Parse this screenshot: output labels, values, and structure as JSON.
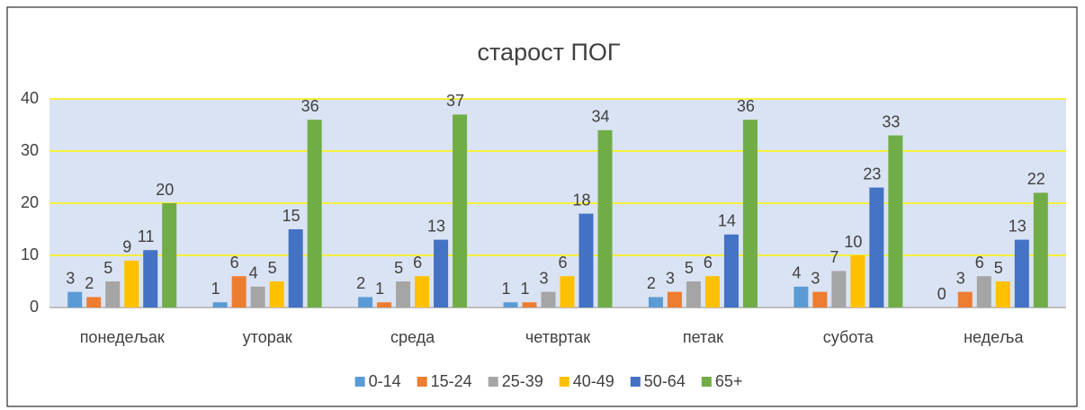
{
  "chart_data": {
    "type": "bar",
    "title": "старост ПОГ",
    "categories": [
      "понедељак",
      "уторак",
      "среда",
      "четвртак",
      "петак",
      "субота",
      "недеља"
    ],
    "series": [
      {
        "name": "0-14",
        "color": "#5b9bd5",
        "values": [
          3,
          1,
          2,
          1,
          2,
          4,
          0
        ]
      },
      {
        "name": "15-24",
        "color": "#ed7d31",
        "values": [
          2,
          6,
          1,
          1,
          3,
          3,
          3
        ]
      },
      {
        "name": "25-39",
        "color": "#a5a5a5",
        "values": [
          5,
          4,
          5,
          3,
          5,
          7,
          6
        ]
      },
      {
        "name": "40-49",
        "color": "#ffc000",
        "values": [
          9,
          5,
          6,
          6,
          6,
          10,
          5
        ]
      },
      {
        "name": "50-64",
        "color": "#4472c4",
        "values": [
          11,
          15,
          13,
          18,
          14,
          23,
          13
        ]
      },
      {
        "name": "65+",
        "color": "#70ad47",
        "values": [
          20,
          36,
          37,
          34,
          36,
          33,
          22
        ]
      }
    ],
    "ylim": [
      0,
      40
    ],
    "yticks": [
      0,
      10,
      20,
      30,
      40
    ],
    "grid": true,
    "legend": "bottom"
  }
}
